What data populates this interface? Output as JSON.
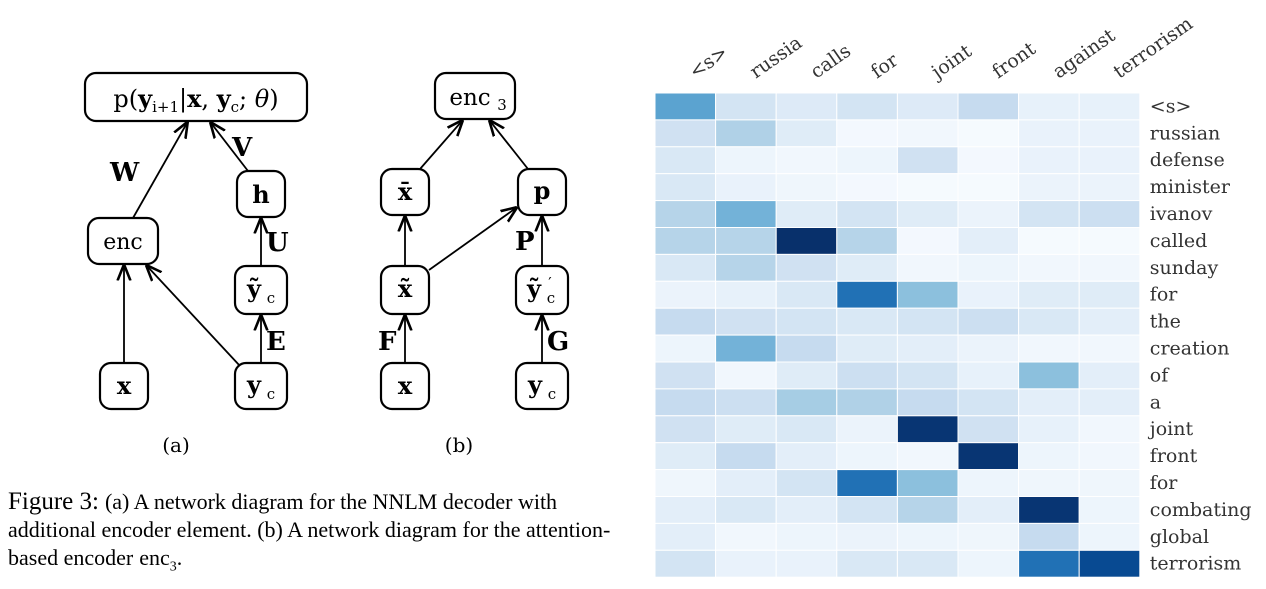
{
  "diagram_a": {
    "label": "(a)",
    "edge_labels": {
      "W": "W",
      "V": "V",
      "U": "U",
      "E": "E"
    },
    "nodes": {
      "top": {
        "prefix": "p(",
        "yi": "y",
        "i1": "i+1",
        "bar": "|",
        "x": "x",
        "comma": ", ",
        "yc": "y",
        "c": "c",
        "semi": "; ",
        "theta": "θ",
        "close": ")"
      },
      "enc": "enc",
      "h": "h",
      "yct": {
        "y": "ỹ",
        "c": "c"
      },
      "x": "x",
      "yc": {
        "y": "y",
        "c": "c"
      }
    }
  },
  "diagram_b": {
    "label": "(b)",
    "edge_labels": {
      "P": "P",
      "F": "F",
      "G": "G"
    },
    "nodes": {
      "enc3": {
        "enc": "enc",
        "sub": "3"
      },
      "xbar": "x̄",
      "p": "p",
      "xt": "x̃",
      "ycp": {
        "y": "ỹ",
        "prime": "′",
        "c": "c"
      },
      "x": "x",
      "yc": {
        "y": "y",
        "c": "c"
      }
    }
  },
  "caption": {
    "figure": "Figure 3:",
    "text": "(a) A network diagram for the NNLM decoder with additional encoder element. (b) A network diagram for the attention-based encoder",
    "enc": "enc",
    "sub": "3",
    "end": "."
  },
  "chart_data": {
    "type": "heatmap",
    "x_labels": [
      "<s>",
      "russia",
      "calls",
      "for",
      "joint",
      "front",
      "against",
      "terrorism"
    ],
    "y_labels": [
      "<s>",
      "russian",
      "defense",
      "minister",
      "ivanov",
      "called",
      "sunday",
      "for",
      "the",
      "creation",
      "of",
      "a",
      "joint",
      "front",
      "for",
      "combating",
      "global",
      "terrorism"
    ],
    "values": [
      [
        0.55,
        0.18,
        0.13,
        0.18,
        0.13,
        0.25,
        0.08,
        0.08
      ],
      [
        0.2,
        0.32,
        0.12,
        0.02,
        0.03,
        0.01,
        0.07,
        0.07
      ],
      [
        0.15,
        0.05,
        0.03,
        0.05,
        0.2,
        0.02,
        0.07,
        0.07
      ],
      [
        0.15,
        0.07,
        0.04,
        0.02,
        0.01,
        0.01,
        0.06,
        0.06
      ],
      [
        0.3,
        0.48,
        0.12,
        0.18,
        0.12,
        0.06,
        0.18,
        0.22
      ],
      [
        0.3,
        0.3,
        1.0,
        0.3,
        0.02,
        0.1,
        0.01,
        0.01
      ],
      [
        0.15,
        0.3,
        0.2,
        0.12,
        0.03,
        0.05,
        0.03,
        0.03
      ],
      [
        0.06,
        0.08,
        0.15,
        0.75,
        0.42,
        0.07,
        0.12,
        0.12
      ],
      [
        0.25,
        0.2,
        0.18,
        0.15,
        0.18,
        0.22,
        0.15,
        0.1
      ],
      [
        0.05,
        0.48,
        0.25,
        0.12,
        0.1,
        0.06,
        0.03,
        0.03
      ],
      [
        0.2,
        0.03,
        0.12,
        0.22,
        0.18,
        0.08,
        0.42,
        0.1
      ],
      [
        0.25,
        0.22,
        0.35,
        0.32,
        0.25,
        0.18,
        0.1,
        0.1
      ],
      [
        0.2,
        0.12,
        0.15,
        0.06,
        0.98,
        0.2,
        0.08,
        0.03
      ],
      [
        0.12,
        0.25,
        0.1,
        0.05,
        0.03,
        0.98,
        0.05,
        0.03
      ],
      [
        0.04,
        0.1,
        0.18,
        0.75,
        0.42,
        0.05,
        0.04,
        0.04
      ],
      [
        0.1,
        0.15,
        0.1,
        0.18,
        0.3,
        0.1,
        0.98,
        0.05
      ],
      [
        0.1,
        0.03,
        0.05,
        0.06,
        0.05,
        0.04,
        0.25,
        0.05
      ],
      [
        0.18,
        0.07,
        0.07,
        0.15,
        0.15,
        0.05,
        0.75,
        0.9
      ]
    ],
    "colormap": [
      "#f7fbff",
      "#deebf7",
      "#c6dbef",
      "#9ecae1",
      "#6baed6",
      "#4292c6",
      "#2171b5",
      "#08519c",
      "#08306b"
    ],
    "cell_border": "#ffffff"
  }
}
